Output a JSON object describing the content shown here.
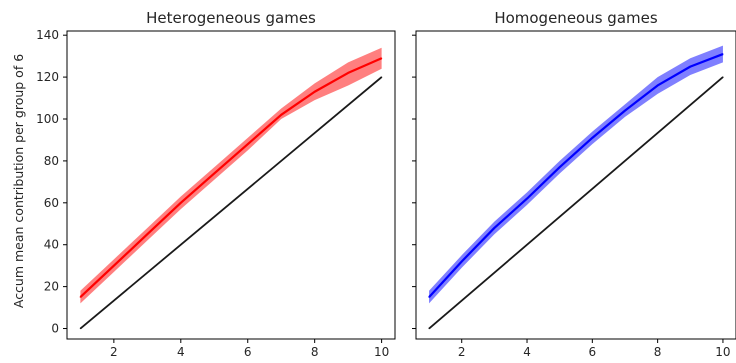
{
  "figure": {
    "shared_ylabel": "Accum mean contribution per group of 6"
  },
  "chart_data": [
    {
      "type": "line",
      "title": "Heterogeneous games",
      "xlabel": "",
      "ylabel": "Accum mean contribution per group of 6",
      "xlim": [
        0.6,
        10.4
      ],
      "ylim": [
        -5,
        142
      ],
      "xticks": [
        2,
        4,
        6,
        8,
        10
      ],
      "yticks": [
        0,
        20,
        40,
        60,
        80,
        100,
        120,
        140
      ],
      "grid": false,
      "series": [
        {
          "color": "#ff0000",
          "style": "mean line with shaded confidence band",
          "x": [
            1,
            2,
            3,
            4,
            5,
            6,
            7,
            8,
            9,
            10
          ],
          "values": [
            15,
            30,
            45,
            60,
            74,
            88,
            102,
            113,
            122,
            129
          ],
          "lower": [
            12,
            27,
            42,
            57,
            71,
            85,
            100,
            109,
            116,
            124
          ],
          "upper": [
            18,
            33,
            48,
            63,
            77,
            91,
            105,
            117,
            127,
            134
          ]
        },
        {
          "color": "#000000",
          "style": "reference line",
          "x": [
            1,
            10
          ],
          "values": [
            0,
            120
          ]
        }
      ]
    },
    {
      "type": "line",
      "title": "Homogeneous games",
      "xlabel": "",
      "ylabel": "",
      "xlim": [
        0.6,
        10.4
      ],
      "ylim": [
        -5,
        142
      ],
      "xticks": [
        2,
        4,
        6,
        8,
        10
      ],
      "yticks": [
        0,
        20,
        40,
        60,
        80,
        100,
        120,
        140
      ],
      "ytick_labels_shown": false,
      "grid": false,
      "series": [
        {
          "color": "#0000ff",
          "style": "mean line with shaded confidence band",
          "x": [
            1,
            2,
            3,
            4,
            5,
            6,
            7,
            8,
            9,
            10
          ],
          "values": [
            15,
            32,
            48,
            62,
            77,
            91,
            104,
            116,
            125,
            131
          ],
          "lower": [
            12,
            29,
            45,
            59,
            74,
            88,
            101,
            112,
            121,
            127
          ],
          "upper": [
            18,
            35,
            51,
            65,
            80,
            94,
            107,
            120,
            129,
            135
          ]
        },
        {
          "color": "#000000",
          "style": "reference line",
          "x": [
            1,
            10
          ],
          "values": [
            0,
            120
          ]
        }
      ]
    }
  ]
}
